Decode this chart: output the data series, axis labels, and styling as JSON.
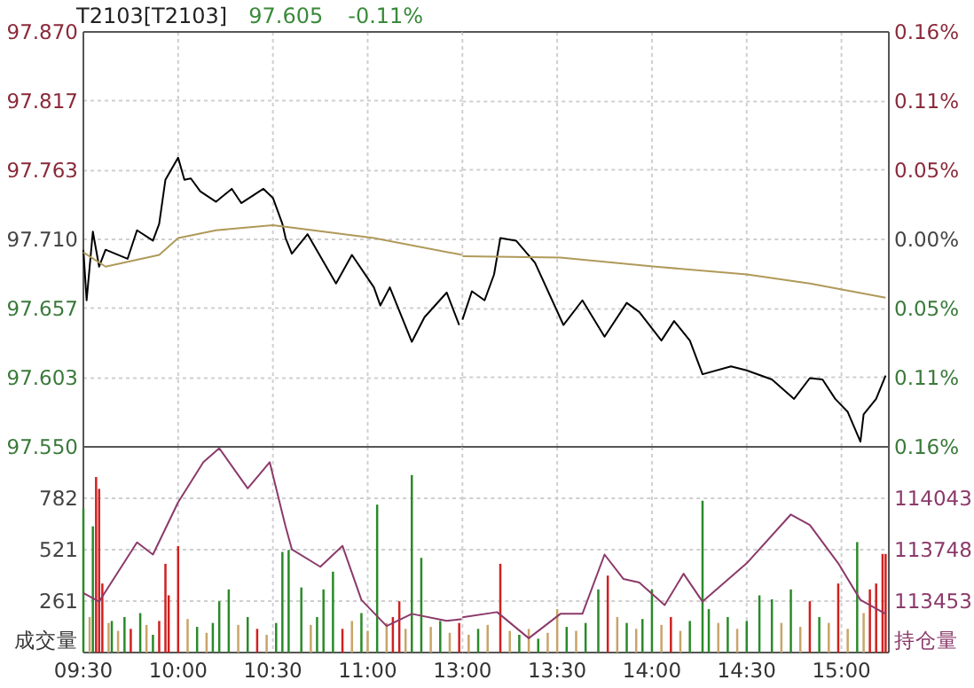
{
  "chart_data": [
    {
      "type": "line",
      "title": "T2103[T2103]",
      "annotations": [
        "97.605",
        "-0.11%"
      ],
      "xlim": [
        9.5,
        11.5
      ],
      "tick_labels": "y",
      "grid": true,
      "xticks": [
        {
          "value": 9.5,
          "label": null
        },
        {
          "value": 10,
          "label": null
        },
        {
          "value": 10.5,
          "label": null
        },
        {
          "value": 11,
          "label": null
        }
      ],
      "ylim": [
        97.55,
        97.87
      ],
      "yticks": [
        {
          "value": 97.55,
          "label": "97.550"
        },
        97.603,
        97.657,
        {
          "value": 97.71,
          "label": "97.710"
        },
        97.763,
        97.817,
        {
          "value": 97.87,
          "label": "97.870"
        }
      ],
      "series": [
        {
          "type": "line",
          "color": "#000000",
          "x": [
            9.5,
            9.517,
            9.55,
            9.583,
            9.617,
            9.733,
            9.783,
            9.867,
            9.9,
            9.933,
            10,
            10.033,
            10.067,
            10.117,
            10.2,
            10.283,
            10.333,
            10.45,
            10.5,
            10.55,
            10.567,
            10.6,
            10.683,
            10.833,
            10.917,
            11.033,
            11.067,
            11.117,
            11.233,
            11.3,
            11.417,
            11.483
          ],
          "values": [
            97.702,
            97.663,
            97.716,
            97.689,
            97.702,
            97.695,
            97.717,
            97.709,
            97.722,
            97.756,
            97.773,
            97.756,
            97.757,
            97.747,
            97.739,
            97.749,
            97.738,
            97.749,
            97.742,
            97.722,
            97.711,
            97.699,
            97.714,
            97.676,
            97.698,
            97.673,
            97.659,
            97.673,
            97.631,
            97.65,
            97.669,
            97.644
          ]
        },
        {
          "type": "line",
          "color": "#b09a5a",
          "x": [
            9.5,
            9.617,
            9.9,
            10,
            10.2,
            10.5,
            11.033,
            11.5
          ],
          "values": [
            97.7,
            97.689,
            97.698,
            97.711,
            97.717,
            97.721,
            97.711,
            97.698
          ]
        }
      ]
    },
    {
      "type": "line",
      "xlim": [
        13,
        15.25
      ],
      "tick_labels": "y",
      "grid": true,
      "xticks": [
        {
          "value": 13,
          "label": null
        },
        {
          "value": 13.5,
          "label": null
        },
        {
          "value": 14,
          "label": null
        },
        {
          "value": 14.5,
          "label": null
        },
        {
          "value": 15,
          "label": null
        }
      ],
      "ylim": [
        97.55,
        97.87
      ],
      "y2lim": [
        -0.164,
        0.164
      ],
      "y2ticks": [
        {
          "value": -0.164,
          "label": "0.16%"
        },
        {
          "value": -0.109,
          "label": "0.11%"
        },
        {
          "value": -0.055,
          "label": "0.05%"
        },
        {
          "value": 0,
          "label": "0.00%"
        },
        {
          "value": 0.055,
          "label": "0.05%"
        },
        {
          "value": 0.109,
          "label": "0.11%"
        },
        {
          "value": 0.164,
          "label": "0.16%"
        }
      ],
      "series": [
        {
          "type": "line",
          "color": "#000000",
          "x": [
            13,
            13.05,
            13.117,
            13.167,
            13.2,
            13.283,
            13.383,
            13.533,
            13.633,
            13.75,
            13.867,
            13.933,
            14.05,
            14.117,
            14.2,
            14.267,
            14.417,
            14.5,
            14.633,
            14.75,
            14.833,
            14.9,
            14.967,
            15.033,
            15.1,
            15.117,
            15.183,
            15.233
          ],
          "values": [
            97.648,
            97.67,
            97.663,
            97.683,
            97.711,
            97.709,
            97.692,
            97.644,
            97.663,
            97.635,
            97.661,
            97.654,
            97.632,
            97.647,
            97.632,
            97.606,
            97.612,
            97.609,
            97.602,
            97.587,
            97.603,
            97.602,
            97.587,
            97.577,
            97.554,
            97.575,
            97.587,
            97.605
          ]
        },
        {
          "type": "line",
          "color": "#b09a5a",
          "x": [
            13,
            13.517,
            14.017,
            14.5,
            14.833,
            15.233
          ],
          "values": [
            97.697,
            97.696,
            97.689,
            97.683,
            97.676,
            97.665
          ]
        }
      ]
    },
    {
      "type": "bar",
      "ylabel": "成交量",
      "xlim": [
        9.5,
        11.5
      ],
      "grid": true,
      "xticks": [
        {
          "value": 9.5,
          "label": "09:30"
        },
        {
          "value": 10,
          "label": "10:00"
        },
        {
          "value": 10.5,
          "label": "10:30"
        },
        {
          "value": 11,
          "label": "11:00"
        }
      ],
      "ylim": [
        0,
        1043
      ],
      "yticks": [
        261,
        521,
        782
      ],
      "y2lim": [
        113158,
        114338
      ],
      "series": [
        {
          "type": "bar",
          "x": [
            9.5,
            9.533,
            9.55,
            9.567,
            9.583,
            9.6,
            9.633,
            9.65,
            9.683,
            9.717,
            9.75,
            9.8,
            9.833,
            9.867,
            9.9,
            9.933,
            9.95,
            10,
            10.05,
            10.1,
            10.15,
            10.183,
            10.217,
            10.267,
            10.317,
            10.367,
            10.417,
            10.467,
            10.517,
            10.55,
            10.583,
            10.65,
            10.7,
            10.733,
            10.767,
            10.817,
            10.867,
            10.917,
            10.967,
            11,
            11.05,
            11.1,
            11.133,
            11.167,
            11.2,
            11.233,
            11.283,
            11.333,
            11.383,
            11.433,
            11.483
          ],
          "values": [
            730,
            180,
            640,
            890,
            830,
            350,
            150,
            160,
            110,
            180,
            120,
            200,
            140,
            90,
            160,
            450,
            290,
            540,
            170,
            130,
            100,
            150,
            260,
            320,
            140,
            180,
            120,
            90,
            150,
            510,
            520,
            330,
            140,
            180,
            320,
            410,
            120,
            160,
            200,
            110,
            750,
            150,
            180,
            260,
            120,
            900,
            480,
            130,
            160,
            100,
            150
          ],
          "colors": [
            "#2a8a2a",
            "#c8a46a",
            "#2a8a2a",
            "#d02020",
            "#d02020",
            "#d02020",
            "#c8a46a",
            "#2a8a2a",
            "#c8a46a",
            "#2a8a2a",
            "#d02020",
            "#2a8a2a",
            "#c8a46a",
            "#2a8a2a",
            "#d02020",
            "#d02020",
            "#d02020",
            "#d02020",
            "#c8a46a",
            "#2a8a2a",
            "#c8a46a",
            "#2a8a2a",
            "#2a8a2a",
            "#2a8a2a",
            "#c8a46a",
            "#2a8a2a",
            "#d02020",
            "#c8a46a",
            "#2a8a2a",
            "#2a8a2a",
            "#2a8a2a",
            "#2a8a2a",
            "#c8a46a",
            "#2a8a2a",
            "#2a8a2a",
            "#2a8a2a",
            "#d02020",
            "#c8a46a",
            "#2a8a2a",
            "#c8a46a",
            "#2a8a2a",
            "#c8a46a",
            "#d02020",
            "#d02020",
            "#c8a46a",
            "#2a8a2a",
            "#2a8a2a",
            "#c8a46a",
            "#2a8a2a",
            "#c8a46a",
            "#d02020"
          ]
        },
        {
          "type": "line",
          "axis": "y2",
          "color": "#8b3a6a",
          "x": [
            9.5,
            9.583,
            9.783,
            9.867,
            10,
            10.133,
            10.217,
            10.367,
            10.483,
            10.567,
            10.6,
            10.75,
            10.867,
            10.967,
            11.1,
            11.233,
            11.417,
            11.5
          ],
          "values": [
            113500,
            113450,
            113790,
            113720,
            114020,
            114250,
            114330,
            114100,
            114250,
            113880,
            113750,
            113650,
            113770,
            113460,
            113310,
            113380,
            113340,
            113350
          ]
        }
      ]
    },
    {
      "type": "bar",
      "y2label": "持仓量",
      "xlim": [
        13,
        15.25
      ],
      "grid": true,
      "xticks": [
        {
          "value": 13,
          "label": "13:00"
        },
        {
          "value": 13.5,
          "label": "13:30"
        },
        {
          "value": 14,
          "label": "14:00"
        },
        {
          "value": 14.5,
          "label": "14:30"
        },
        {
          "value": 15,
          "label": "15:00"
        }
      ],
      "ylim": [
        0,
        1043
      ],
      "y2lim": [
        113158,
        114338
      ],
      "y2ticks": [
        113453,
        113748,
        114043
      ],
      "series": [
        {
          "type": "bar",
          "x": [
            13.033,
            13.083,
            13.133,
            13.2,
            13.25,
            13.3,
            13.35,
            13.4,
            13.45,
            13.5,
            13.55,
            13.6,
            13.65,
            13.717,
            13.767,
            13.817,
            13.867,
            13.917,
            13.95,
            14,
            14.05,
            14.1,
            14.15,
            14.2,
            14.267,
            14.3,
            14.35,
            14.4,
            14.45,
            14.5,
            14.567,
            14.633,
            14.683,
            14.733,
            14.783,
            14.833,
            14.883,
            14.933,
            14.983,
            15.033,
            15.083,
            15.117,
            15.15,
            15.183,
            15.217,
            15.233
          ],
          "values": [
            90,
            120,
            140,
            450,
            110,
            90,
            120,
            70,
            100,
            220,
            130,
            110,
            150,
            320,
            390,
            180,
            150,
            120,
            170,
            320,
            140,
            180,
            110,
            160,
            770,
            220,
            150,
            180,
            120,
            160,
            290,
            270,
            150,
            320,
            130,
            260,
            180,
            150,
            350,
            120,
            560,
            200,
            320,
            350,
            500,
            500
          ],
          "colors": [
            "#c8a46a",
            "#2a8a2a",
            "#c8a46a",
            "#d02020",
            "#c8a46a",
            "#2a8a2a",
            "#c8a46a",
            "#2a8a2a",
            "#c8a46a",
            "#c8a46a",
            "#2a8a2a",
            "#c8a46a",
            "#2a8a2a",
            "#2a8a2a",
            "#d02020",
            "#c8a46a",
            "#2a8a2a",
            "#c8a46a",
            "#2a8a2a",
            "#2a8a2a",
            "#c8a46a",
            "#d02020",
            "#c8a46a",
            "#2a8a2a",
            "#2a8a2a",
            "#2a8a2a",
            "#c8a46a",
            "#2a8a2a",
            "#c8a46a",
            "#2a8a2a",
            "#2a8a2a",
            "#2a8a2a",
            "#c8a46a",
            "#2a8a2a",
            "#c8a46a",
            "#d02020",
            "#2a8a2a",
            "#c8a46a",
            "#d02020",
            "#c8a46a",
            "#2a8a2a",
            "#c8a46a",
            "#d02020",
            "#d02020",
            "#d02020",
            "#d02020"
          ]
        },
        {
          "type": "line",
          "axis": "y2",
          "color": "#8b3a6a",
          "x": [
            13,
            13.183,
            13.35,
            13.517,
            13.633,
            13.75,
            13.85,
            13.933,
            14.067,
            14.167,
            14.267,
            14.5,
            14.733,
            14.833,
            14.983,
            15.1,
            15.233
          ],
          "values": [
            113360,
            113390,
            113240,
            113380,
            113380,
            113720,
            113580,
            113560,
            113430,
            113610,
            113450,
            113670,
            113950,
            113890,
            113670,
            113460,
            113380
          ]
        }
      ]
    }
  ]
}
